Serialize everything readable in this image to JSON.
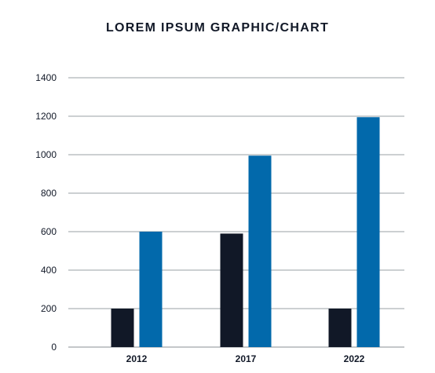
{
  "chart_data": {
    "type": "bar",
    "title": "LOREM IPSUM GRAPHIC/CHART",
    "categories": [
      "2012",
      "2017",
      "2022"
    ],
    "series": [
      {
        "values": [
          200,
          590,
          200
        ],
        "color": "#111827"
      },
      {
        "values": [
          600,
          995,
          1195
        ],
        "color": "#0269AB"
      }
    ],
    "ylim": [
      0,
      1400
    ],
    "yticks": [
      0,
      200,
      400,
      600,
      800,
      1000,
      1200,
      1400
    ],
    "grid": true,
    "xlabel": "",
    "ylabel": ""
  }
}
